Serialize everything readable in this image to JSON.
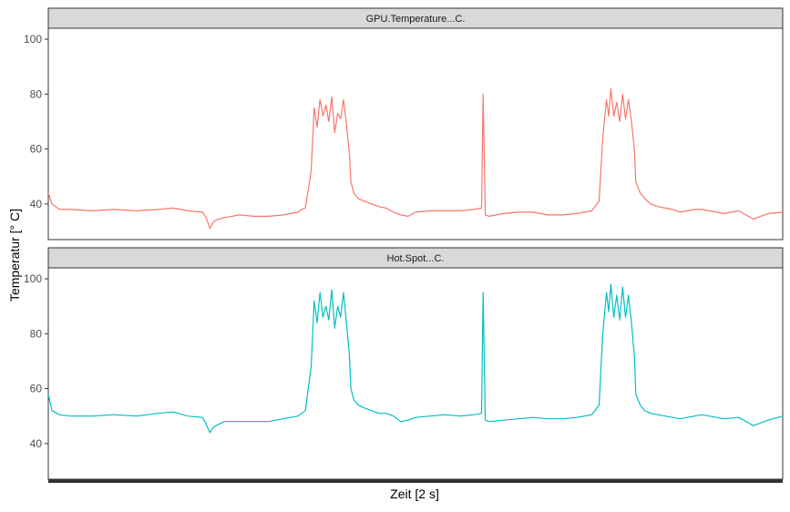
{
  "chart_data": {
    "type": "line",
    "ylabel": "Temperatur [° C]",
    "xlabel": "Zeit [2 s]",
    "ylim": [
      27,
      104
    ],
    "xlim": [
      0,
      1000
    ],
    "grid": false,
    "legend": "none",
    "series": [
      {
        "name": "GPU.Temperature...C.",
        "color": "#F8766D",
        "yticks": [
          "40",
          "60",
          "80",
          "100"
        ],
        "x": [
          0,
          5,
          15,
          30,
          60,
          90,
          120,
          150,
          170,
          190,
          210,
          215,
          220,
          225,
          232,
          240,
          260,
          280,
          300,
          320,
          340,
          345,
          350,
          358,
          362,
          366,
          370,
          374,
          378,
          382,
          386,
          390,
          394,
          398,
          402,
          406,
          410,
          412,
          416,
          422,
          430,
          440,
          450,
          460,
          470,
          480,
          490,
          500,
          520,
          540,
          560,
          580,
          590,
          592,
          595,
          600,
          620,
          640,
          660,
          680,
          700,
          720,
          740,
          750,
          755,
          760,
          763,
          766,
          770,
          774,
          778,
          782,
          786,
          790,
          794,
          798,
          800,
          806,
          812,
          820,
          830,
          840,
          850,
          860,
          870,
          880,
          890,
          900,
          920,
          940,
          960,
          970,
          980,
          1000
        ],
        "values": [
          44,
          40,
          38,
          38,
          37.5,
          38,
          37.5,
          38,
          38.5,
          37.5,
          37,
          35,
          31,
          33.5,
          34.5,
          35,
          36,
          35.5,
          35.5,
          36,
          37,
          38,
          38.5,
          52,
          75,
          68,
          78,
          72,
          76,
          70,
          79,
          66,
          73,
          71,
          78,
          69,
          58,
          48,
          44,
          42,
          41,
          40,
          39,
          38.5,
          37,
          36,
          35.5,
          37,
          37.5,
          37.5,
          37.5,
          38,
          38.5,
          80,
          36,
          35.5,
          36.5,
          37,
          37,
          36,
          36,
          36.5,
          37.5,
          41,
          64,
          78,
          72,
          82,
          72,
          77,
          70,
          80,
          71,
          78,
          70,
          60,
          48,
          44,
          42,
          40,
          39,
          38.5,
          38,
          37,
          37.5,
          38,
          38,
          37.5,
          36.5,
          37.5,
          34.5,
          35.5,
          36.5,
          37
        ]
      },
      {
        "name": "Hot.Spot...C.",
        "color": "#00BFC4",
        "yticks": [
          "40",
          "60",
          "80",
          "100"
        ],
        "x": [
          0,
          5,
          15,
          30,
          60,
          90,
          120,
          150,
          170,
          190,
          210,
          215,
          220,
          225,
          232,
          240,
          260,
          280,
          300,
          320,
          340,
          345,
          350,
          358,
          362,
          366,
          370,
          374,
          378,
          382,
          386,
          390,
          394,
          398,
          402,
          406,
          410,
          412,
          416,
          422,
          430,
          440,
          450,
          460,
          470,
          480,
          490,
          500,
          520,
          540,
          560,
          580,
          590,
          592,
          595,
          600,
          620,
          640,
          660,
          680,
          700,
          720,
          740,
          750,
          755,
          760,
          763,
          766,
          770,
          774,
          778,
          782,
          786,
          790,
          794,
          798,
          800,
          806,
          812,
          820,
          830,
          840,
          850,
          860,
          870,
          880,
          890,
          900,
          920,
          940,
          960,
          970,
          980,
          1000
        ],
        "values": [
          58,
          52,
          50.5,
          50,
          50,
          50.5,
          50,
          51,
          51.5,
          50,
          49.5,
          47,
          44,
          46,
          47,
          48,
          48,
          48,
          48,
          49,
          50,
          51,
          52,
          68,
          92,
          84,
          95,
          86,
          90,
          85,
          96,
          82,
          90,
          86,
          95,
          84,
          72,
          60,
          56,
          54,
          53,
          52,
          51,
          51,
          50,
          48,
          48.5,
          49.5,
          50,
          50.5,
          50,
          50.5,
          51,
          95,
          48.5,
          48,
          48.5,
          49,
          49.5,
          49,
          49,
          49.5,
          50.5,
          54,
          80,
          95,
          88,
          98,
          86,
          94,
          85,
          97,
          86,
          94,
          84,
          72,
          58,
          54,
          52,
          51,
          50.5,
          50,
          49.5,
          49,
          49.5,
          50,
          50.5,
          50,
          49,
          49.5,
          46.5,
          47.5,
          48.5,
          50
        ]
      }
    ]
  }
}
